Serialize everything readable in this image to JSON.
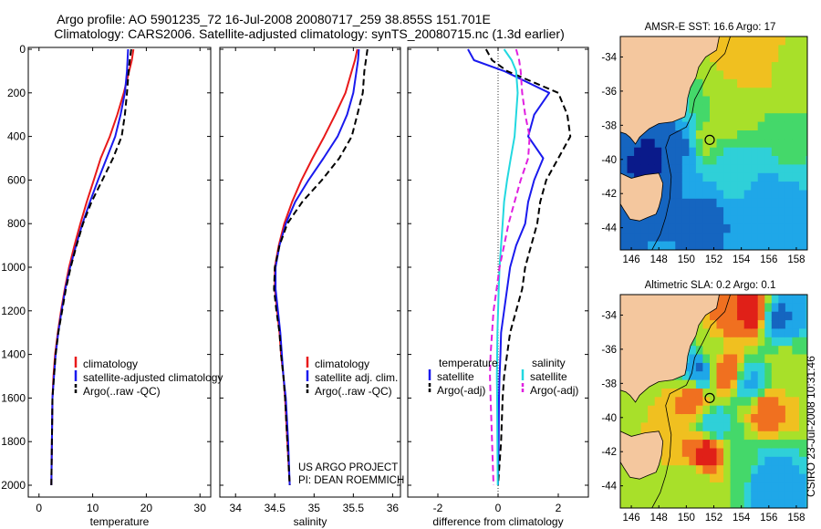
{
  "title": {
    "line1": "Argo profile: AO 5901235_72 16-Jul-2008 20080717_259 38.855S 151.701E",
    "line2": "Climatology: CARS2006. Satellite-adjusted climatology: synTS_20080715.nc (1.3d earlier)"
  },
  "credit": {
    "line1": "US ARGO PROJECT",
    "line2": "PI: DEAN ROEMMICH",
    "side": "CSIRO 23-Jul-2008 10:31:46"
  },
  "colors": {
    "climatology": "#e8191a",
    "satellite": "#1a1aee",
    "argo": "#000000",
    "sat_salinity": "#22d8e0",
    "argo_salinity": "#e020e0",
    "land": "#f4c79e"
  },
  "chart_data": [
    {
      "type": "line",
      "id": "temperature",
      "xlabel": "temperature",
      "ylabel": "",
      "xlim": [
        -2,
        32
      ],
      "ylim": [
        2050,
        0
      ],
      "xticks": [
        0,
        10,
        20,
        30
      ],
      "yticks": [
        0,
        200,
        400,
        600,
        800,
        1000,
        1200,
        1400,
        1600,
        1800,
        2000
      ],
      "legend": {
        "placement": "lower-right",
        "entries": [
          "climatology",
          "satellite-adjusted climatology",
          "Argo(..raw -QC)"
        ]
      },
      "series": [
        {
          "name": "climatology",
          "color": "#e8191a",
          "dash": "solid",
          "x": [
            17.6,
            17.3,
            16.8,
            15.8,
            14.6,
            13.2,
            11.5,
            10.2,
            8.9,
            7.7,
            6.6,
            5.6,
            4.8,
            4.1,
            3.5,
            3.0,
            2.7,
            2.5,
            2.4,
            2.3
          ],
          "y": [
            0,
            50,
            100,
            200,
            300,
            400,
            500,
            600,
            700,
            800,
            900,
            1000,
            1100,
            1200,
            1300,
            1400,
            1500,
            1600,
            1800,
            2000
          ]
        },
        {
          "name": "satellite-adjusted climatology",
          "color": "#1a1aee",
          "dash": "solid",
          "x": [
            16.6,
            16.5,
            16.4,
            16.0,
            15.2,
            14.2,
            12.6,
            11.0,
            9.5,
            8.1,
            6.9,
            5.8,
            4.9,
            4.2,
            3.6,
            3.1,
            2.8,
            2.5,
            2.4,
            2.3
          ],
          "y": [
            0,
            50,
            100,
            200,
            300,
            400,
            500,
            600,
            700,
            800,
            900,
            1000,
            1100,
            1200,
            1300,
            1400,
            1500,
            1600,
            1800,
            2000
          ]
        },
        {
          "name": "Argo(..raw -QC)",
          "color": "#000000",
          "dash": "dash",
          "x": [
            17.2,
            16.9,
            16.7,
            16.4,
            16.0,
            15.4,
            13.8,
            11.8,
            9.8,
            8.2,
            7.0,
            5.9,
            5.0,
            4.3,
            3.6,
            3.1,
            2.8,
            2.5,
            2.4,
            2.3
          ],
          "y": [
            0,
            50,
            100,
            200,
            300,
            400,
            500,
            600,
            700,
            800,
            900,
            1000,
            1100,
            1200,
            1300,
            1400,
            1500,
            1600,
            1800,
            2000
          ]
        }
      ]
    },
    {
      "type": "line",
      "id": "salinity",
      "xlabel": "salinity",
      "ylabel": "",
      "xlim": [
        33.8,
        36.1
      ],
      "ylim": [
        2050,
        0
      ],
      "xticks": [
        34,
        34.5,
        35,
        35.5,
        36
      ],
      "legend": {
        "placement": "lower-right",
        "entries": [
          "climatology",
          "satellite adj. clim.",
          "Argo(..raw -QC)"
        ]
      },
      "series": [
        {
          "name": "climatology",
          "color": "#e8191a",
          "dash": "solid",
          "x": [
            35.55,
            35.52,
            35.48,
            35.4,
            35.27,
            35.13,
            34.98,
            34.84,
            34.72,
            34.62,
            34.55,
            34.5,
            34.5,
            34.53,
            34.56,
            34.58,
            34.61,
            34.63,
            34.66,
            34.69
          ],
          "y": [
            0,
            50,
            100,
            200,
            300,
            400,
            500,
            600,
            700,
            800,
            900,
            1000,
            1100,
            1200,
            1300,
            1400,
            1500,
            1600,
            1800,
            2000
          ]
        },
        {
          "name": "satellite adj. clim.",
          "color": "#1a1aee",
          "dash": "solid",
          "x": [
            35.57,
            35.56,
            35.54,
            35.5,
            35.42,
            35.3,
            35.12,
            34.93,
            34.76,
            34.64,
            34.56,
            34.51,
            34.51,
            34.54,
            34.57,
            34.59,
            34.61,
            34.64,
            34.67,
            34.69
          ],
          "y": [
            0,
            50,
            100,
            200,
            300,
            400,
            500,
            600,
            700,
            800,
            900,
            1000,
            1100,
            1200,
            1300,
            1400,
            1500,
            1600,
            1800,
            2000
          ]
        },
        {
          "name": "Argo(..raw -QC)",
          "color": "#000000",
          "dash": "dash",
          "x": [
            35.68,
            35.66,
            35.64,
            35.62,
            35.55,
            35.48,
            35.32,
            35.1,
            34.85,
            34.66,
            34.56,
            34.5,
            34.49,
            34.52,
            34.56,
            34.58,
            34.61,
            34.63,
            34.66,
            34.69
          ],
          "y": [
            0,
            50,
            100,
            200,
            300,
            400,
            500,
            600,
            700,
            800,
            900,
            1000,
            1100,
            1200,
            1300,
            1400,
            1500,
            1600,
            1800,
            2000
          ]
        }
      ]
    },
    {
      "type": "line",
      "id": "difference",
      "xlabel": "difference from climatology",
      "ylabel": "",
      "xlim": [
        -3,
        3
      ],
      "ylim": [
        2050,
        0
      ],
      "xticks": [
        -2,
        0,
        2
      ],
      "zero_line": true,
      "legend": {
        "placement": "lower-center",
        "groups": [
          {
            "heading": "temperature",
            "entries": [
              "satellite",
              "Argo(-adj)"
            ]
          },
          {
            "heading": "salinity",
            "entries": [
              "satellite",
              "Argo(-adj)"
            ]
          }
        ]
      },
      "series": [
        {
          "name": "satellite",
          "group": "temperature",
          "color": "#1a1aee",
          "dash": "solid",
          "x": [
            -1.0,
            -0.8,
            0.2,
            1.7,
            1.2,
            1.0,
            1.5,
            1.2,
            1.0,
            0.9,
            0.6,
            0.4,
            0.3,
            0.2,
            0.1,
            0.08,
            0.05,
            0.03,
            0.02,
            0.0
          ],
          "y": [
            0,
            50,
            100,
            200,
            300,
            400,
            500,
            600,
            700,
            800,
            900,
            1000,
            1100,
            1200,
            1300,
            1400,
            1500,
            1600,
            1800,
            2000
          ]
        },
        {
          "name": "Argo(-adj)",
          "group": "temperature",
          "color": "#000000",
          "dash": "dash",
          "x": [
            -0.4,
            -0.2,
            0.3,
            2.0,
            2.3,
            2.4,
            2.0,
            1.6,
            1.4,
            1.3,
            1.1,
            0.9,
            0.8,
            0.6,
            0.4,
            0.3,
            0.2,
            0.15,
            0.1,
            0.0
          ],
          "y": [
            0,
            50,
            100,
            200,
            300,
            400,
            500,
            600,
            700,
            800,
            900,
            1000,
            1100,
            1200,
            1300,
            1400,
            1500,
            1600,
            1800,
            2000
          ]
        },
        {
          "name": "satellite",
          "group": "salinity",
          "color": "#22d8e0",
          "dash": "solid",
          "x": [
            0.2,
            0.45,
            0.6,
            0.65,
            0.6,
            0.55,
            0.42,
            0.3,
            0.2,
            0.15,
            0.1,
            0.05,
            0.02,
            0.0,
            -0.02,
            -0.03,
            -0.04,
            -0.03,
            -0.02,
            -0.01
          ],
          "y": [
            0,
            50,
            100,
            200,
            300,
            400,
            500,
            600,
            700,
            800,
            900,
            1000,
            1100,
            1200,
            1300,
            1400,
            1500,
            1600,
            1800,
            2000
          ]
        },
        {
          "name": "Argo(-adj)",
          "group": "salinity",
          "color": "#e020e0",
          "dash": "dash",
          "x": [
            0.6,
            0.7,
            0.75,
            0.8,
            0.9,
            1.05,
            1.0,
            0.75,
            0.55,
            0.35,
            0.2,
            0.05,
            -0.05,
            -0.15,
            -0.2,
            -0.25,
            -0.27,
            -0.25,
            -0.2,
            -0.15
          ],
          "y": [
            0,
            50,
            100,
            200,
            300,
            400,
            500,
            600,
            700,
            800,
            900,
            1000,
            1100,
            1200,
            1300,
            1400,
            1500,
            1600,
            1800,
            2000
          ]
        }
      ]
    },
    {
      "type": "heatmap",
      "id": "sst_map",
      "title": "AMSR-E SST: 16.6 Argo: 17",
      "xlim": [
        145.2,
        158.8
      ],
      "ylim": [
        -45.3,
        -32.8
      ],
      "xticks": [
        146,
        148,
        150,
        152,
        154,
        156,
        158
      ],
      "yticks": [
        -34,
        -36,
        -38,
        -40,
        -42,
        -44
      ],
      "marker": {
        "lon": 151.701,
        "lat": -38.855
      },
      "palette": [
        "#0a1a8a",
        "#1565c0",
        "#1fa7e8",
        "#2fd0d8",
        "#44d86a",
        "#a8e02a",
        "#f0c020",
        "#f07020",
        "#e02018"
      ],
      "value_range": [
        10,
        20
      ],
      "blobs": [
        {
          "lon": 154.5,
          "lat": -34.2,
          "value": 17.5
        },
        {
          "lon": 157.5,
          "lat": -35.2,
          "value": 16.5
        },
        {
          "lon": 153.5,
          "lat": -37.0,
          "value": 16.0
        },
        {
          "lon": 151.5,
          "lat": -38.8,
          "value": 15.8
        },
        {
          "lon": 149.5,
          "lat": -39.2,
          "value": 12.0
        },
        {
          "lon": 147.5,
          "lat": -40.0,
          "value": 11.0
        },
        {
          "lon": 153.0,
          "lat": -41.0,
          "value": 13.5
        },
        {
          "lon": 156.5,
          "lat": -42.5,
          "value": 12.5
        },
        {
          "lon": 151.5,
          "lat": -43.2,
          "value": 12.0
        },
        {
          "lon": 157.5,
          "lat": -39.5,
          "value": 14.5
        }
      ]
    },
    {
      "type": "heatmap",
      "id": "sla_map",
      "title": "Altimetric SLA: 0.2 Argo: 0.1",
      "xlim": [
        145.2,
        158.8
      ],
      "ylim": [
        -45.3,
        -32.8
      ],
      "xticks": [
        146,
        148,
        150,
        152,
        154,
        156,
        158
      ],
      "yticks": [
        -34,
        -36,
        -38,
        -40,
        -42,
        -44
      ],
      "marker": {
        "lon": 151.701,
        "lat": -38.855
      },
      "palette": [
        "#0a1a8a",
        "#1565c0",
        "#1fa7e8",
        "#2fd0d8",
        "#44d86a",
        "#a8e02a",
        "#f0c020",
        "#f07020",
        "#e02018"
      ],
      "value_range": [
        -0.5,
        0.5
      ],
      "blobs": [
        {
          "lon": 153.0,
          "lat": -34.5,
          "value": 0.35
        },
        {
          "lon": 154.8,
          "lat": -33.8,
          "value": 0.45
        },
        {
          "lon": 156.7,
          "lat": -34.2,
          "value": -0.3
        },
        {
          "lon": 152.0,
          "lat": -36.0,
          "value": 0.1
        },
        {
          "lon": 151.0,
          "lat": -37.3,
          "value": -0.3
        },
        {
          "lon": 152.8,
          "lat": -37.3,
          "value": 0.4
        },
        {
          "lon": 154.8,
          "lat": -38.0,
          "value": -0.2
        },
        {
          "lon": 157.0,
          "lat": -37.0,
          "value": 0.1
        },
        {
          "lon": 150.5,
          "lat": -38.9,
          "value": 0.35
        },
        {
          "lon": 155.8,
          "lat": -39.5,
          "value": 0.35
        },
        {
          "lon": 152.0,
          "lat": -40.5,
          "value": -0.15
        },
        {
          "lon": 151.5,
          "lat": -42.0,
          "value": 0.45
        },
        {
          "lon": 154.0,
          "lat": -42.5,
          "value": 0.0
        },
        {
          "lon": 156.0,
          "lat": -43.5,
          "value": -0.25
        },
        {
          "lon": 150.5,
          "lat": -44.0,
          "value": 0.1
        }
      ]
    }
  ]
}
